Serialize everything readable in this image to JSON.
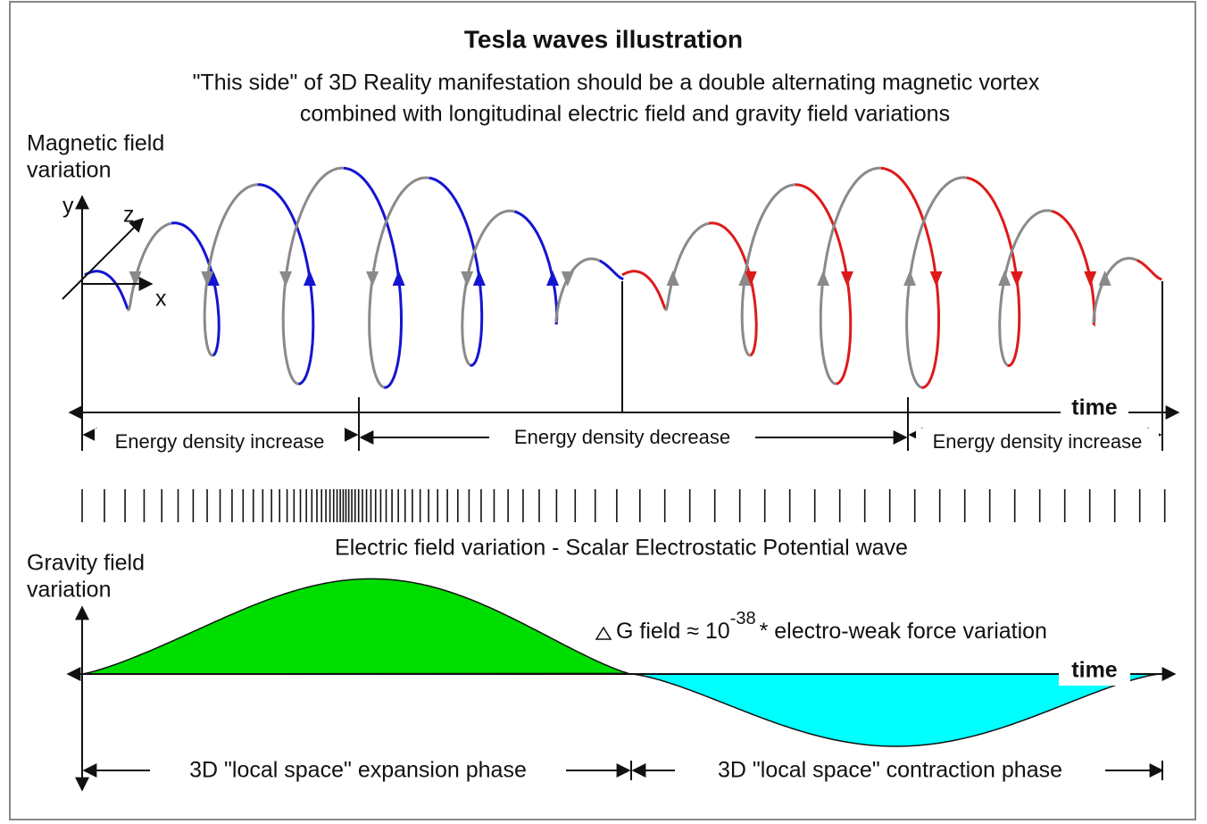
{
  "title": "Tesla waves illustration",
  "subtitle": [
    "\"This side\" of 3D Reality manifestation should be a double alternating magnetic vortex",
    "combined with longitudinal electric field and gravity field variations"
  ],
  "magnetic_label": [
    "Magnetic field",
    "variation"
  ],
  "axes": {
    "y": "y",
    "z": "z",
    "x": "x"
  },
  "time_labels": [
    "time",
    "time"
  ],
  "energy_phases": [
    "Energy density increase",
    "Energy density decrease",
    "Energy density increase"
  ],
  "electric_label": "Electric field variation - Scalar Electrostatic Potential wave",
  "gravity_label": [
    "Gravity field",
    "variation"
  ],
  "gravity_note": {
    "prefix": "G field ≈ 10",
    "exponent": "-38",
    "suffix": "* electro-weak force variation"
  },
  "space_phases": [
    "3D \"local space\" expansion phase",
    "3D \"local space\" contraction phase"
  ]
}
